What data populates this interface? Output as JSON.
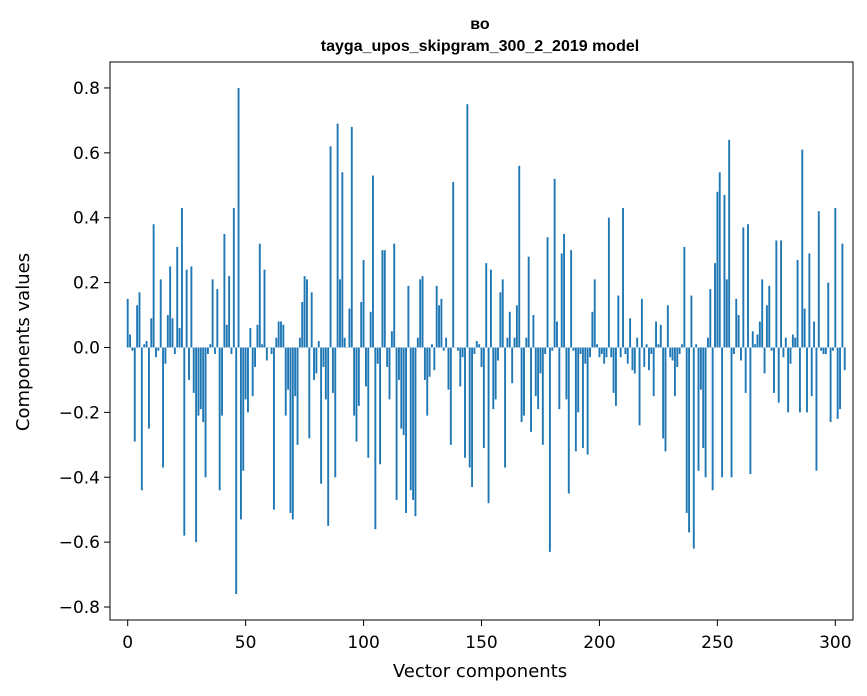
{
  "chart_data": {
    "type": "bar",
    "title": "во",
    "subtitle": "tayga_upos_skipgram_300_2_2019 model",
    "xlabel": "Vector components",
    "ylabel": "Components values",
    "xlim": [
      -7.5,
      307.5
    ],
    "ylim": [
      -0.84,
      0.88
    ],
    "xticks": [
      0,
      50,
      100,
      150,
      200,
      250,
      300
    ],
    "yticks": [
      -0.8,
      -0.6,
      -0.4,
      -0.2,
      0.0,
      0.2,
      0.4,
      0.6,
      0.8
    ],
    "ytick_labels": [
      "−0.8",
      "−0.6",
      "−0.4",
      "−0.2",
      "0.0",
      "0.2",
      "0.4",
      "0.6",
      "0.8"
    ],
    "grid": false,
    "color": "#1f77b4",
    "values": [
      0.15,
      0.04,
      -0.01,
      -0.29,
      0.13,
      0.17,
      -0.44,
      0.01,
      0.02,
      -0.25,
      0.09,
      0.38,
      -0.03,
      -0.01,
      0.21,
      -0.37,
      -0.05,
      0.1,
      0.25,
      0.09,
      -0.02,
      0.31,
      0.06,
      0.43,
      -0.58,
      0.24,
      -0.1,
      0.25,
      -0.14,
      -0.6,
      -0.21,
      -0.19,
      -0.23,
      -0.4,
      -0.02,
      0.01,
      0.21,
      -0.02,
      0.18,
      -0.44,
      -0.21,
      0.35,
      0.07,
      0.22,
      -0.02,
      0.43,
      -0.76,
      0.8,
      -0.53,
      -0.38,
      -0.16,
      -0.2,
      0.06,
      -0.15,
      -0.06,
      0.07,
      0.32,
      0.01,
      0.24,
      -0.04,
      0.0,
      -0.02,
      -0.5,
      0.03,
      0.08,
      0.08,
      0.07,
      -0.21,
      -0.13,
      -0.51,
      -0.53,
      -0.15,
      -0.3,
      0.03,
      0.14,
      0.22,
      0.21,
      -0.28,
      0.17,
      -0.1,
      -0.08,
      0.02,
      -0.42,
      -0.06,
      -0.16,
      -0.55,
      0.62,
      -0.14,
      -0.4,
      0.69,
      0.21,
      0.54,
      0.03,
      0.0,
      0.12,
      0.68,
      -0.21,
      -0.29,
      -0.18,
      0.14,
      0.27,
      -0.12,
      -0.34,
      0.11,
      0.53,
      -0.56,
      -0.05,
      -0.36,
      0.3,
      0.3,
      -0.06,
      -0.16,
      0.05,
      0.32,
      -0.47,
      -0.1,
      -0.25,
      -0.27,
      -0.51,
      0.19,
      -0.44,
      -0.47,
      -0.52,
      0.03,
      0.21,
      0.22,
      -0.1,
      -0.21,
      -0.09,
      0.01,
      -0.07,
      0.19,
      0.13,
      0.15,
      -0.01,
      0.03,
      -0.13,
      -0.3,
      0.51,
      0.0,
      -0.01,
      -0.12,
      -0.03,
      -0.34,
      0.75,
      -0.37,
      -0.43,
      -0.02,
      0.02,
      0.01,
      -0.06,
      -0.31,
      0.26,
      -0.48,
      0.24,
      -0.19,
      -0.16,
      -0.04,
      0.17,
      0.21,
      -0.37,
      0.03,
      0.11,
      -0.11,
      0.03,
      0.13,
      0.56,
      -0.23,
      -0.21,
      0.03,
      0.28,
      -0.26,
      0.1,
      -0.15,
      -0.19,
      -0.08,
      -0.3,
      -0.02,
      0.34,
      -0.63,
      -0.01,
      0.52,
      0.08,
      -0.19,
      0.29,
      0.35,
      -0.16,
      -0.45,
      0.3,
      -0.01,
      -0.32,
      -0.2,
      -0.02,
      -0.31,
      -0.05,
      -0.33,
      -0.03,
      0.11,
      0.21,
      0.01,
      -0.03,
      -0.02,
      -0.05,
      -0.03,
      0.4,
      -0.03,
      -0.14,
      -0.18,
      0.16,
      -0.03,
      0.43,
      -0.02,
      -0.05,
      0.09,
      -0.07,
      -0.08,
      0.03,
      -0.24,
      0.15,
      -0.06,
      0.01,
      -0.07,
      -0.02,
      -0.15,
      0.08,
      0.01,
      0.07,
      -0.28,
      -0.32,
      0.13,
      -0.03,
      -0.04,
      -0.15,
      -0.06,
      -0.02,
      0.01,
      0.31,
      -0.51,
      -0.57,
      0.16,
      -0.62,
      0.01,
      -0.38,
      -0.13,
      -0.31,
      -0.4,
      0.03,
      0.18,
      -0.44,
      0.26,
      0.48,
      0.54,
      -0.4,
      0.47,
      0.21,
      0.64,
      -0.4,
      -0.02,
      0.15,
      0.1,
      -0.04,
      0.37,
      -0.14,
      0.38,
      -0.39,
      0.05,
      0.01,
      0.04,
      0.08,
      0.21,
      -0.08,
      0.13,
      0.19,
      -0.01,
      -0.14,
      0.33,
      -0.17,
      0.33,
      -0.03,
      0.03,
      -0.2,
      -0.05,
      0.04,
      0.03,
      0.27,
      -0.2,
      0.61,
      0.12,
      -0.2,
      0.29,
      -0.15,
      0.08,
      -0.38,
      0.42,
      -0.01,
      -0.02,
      -0.02,
      0.2,
      -0.23,
      -0.01,
      0.43,
      -0.22,
      -0.19,
      0.32,
      -0.07
    ]
  }
}
